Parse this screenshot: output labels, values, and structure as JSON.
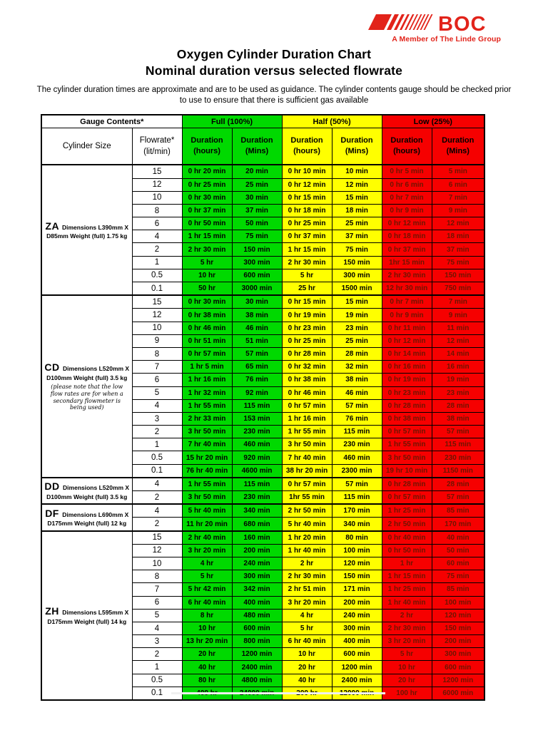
{
  "logo": {
    "brand": "BOC",
    "tagline": "A Member of The Linde Group",
    "brand_color": "#e2231a"
  },
  "title_line1": "Oxygen Cylinder Duration Chart",
  "title_line2": "Nominal duration versus selected flowrate",
  "disclaimer": "The cylinder duration times are approximate and are to be used as guidance.  The cylinder contents gauge should be checked prior to use to ensure that there is sufficient gas available",
  "table": {
    "gauge_contents_label": "Gauge Contents*",
    "bands": [
      {
        "label": "Full (100%)",
        "color": "#00d900"
      },
      {
        "label": "Half (50%)",
        "color": "#ffff00"
      },
      {
        "label": "Low (25%)",
        "color": "#f60000"
      }
    ],
    "col_headers": {
      "cylinder_size": "Cylinder Size",
      "flowrate_l1": "Flowrate*",
      "flowrate_l2": "(lit/min)",
      "duration_l1": "Duration",
      "hours_l2": "(hours)",
      "mins_l2": "(Mins)"
    },
    "sections": [
      {
        "code": "ZA",
        "details_line1": "Dimensions L390mm X",
        "details_line2": "D85mm Weight (full) 1.75 kg",
        "note": "",
        "rows": [
          {
            "flow": "15",
            "cells": [
              "0 hr 20 min",
              "20 min",
              "0 hr 10 min",
              "10 min",
              "0 hr 5 min",
              "5 min"
            ]
          },
          {
            "flow": "12",
            "cells": [
              "0 hr 25 min",
              "25 min",
              "0 hr 12 min",
              "12 min",
              "0 hr 6 min",
              "6 min"
            ]
          },
          {
            "flow": "10",
            "cells": [
              "0 hr 30 min",
              "30 min",
              "0 hr 15 min",
              "15 min",
              "0 hr 7 min",
              "7 min"
            ]
          },
          {
            "flow": "8",
            "cells": [
              "0 hr 37 min",
              "37 min",
              "0 hr 18 min",
              "18 min",
              "0 hr 9 min",
              "9 min"
            ]
          },
          {
            "flow": "6",
            "cells": [
              "0 hr 50 min",
              "50 min",
              "0 hr 25 min",
              "25 min",
              "0 hr 12 min",
              "12 min"
            ]
          },
          {
            "flow": "4",
            "cells": [
              "1 hr 15 min",
              "75 min",
              "0 hr 37 min",
              "37 min",
              "0 hr 18 min",
              "18 min"
            ]
          },
          {
            "flow": "2",
            "cells": [
              "2 hr 30 min",
              "150 min",
              "1 hr 15 min",
              "75 min",
              "0 hr 37 min",
              "37 min"
            ]
          },
          {
            "flow": "1",
            "cells": [
              "5 hr",
              "300 min",
              "2 hr 30 min",
              "150 min",
              "1hr 15 min",
              "75 min"
            ]
          },
          {
            "flow": "0.5",
            "cells": [
              "10 hr",
              "600 min",
              "5 hr",
              "300 min",
              "2 hr 30 min",
              "150 min"
            ]
          },
          {
            "flow": "0.1",
            "cells": [
              "50 hr",
              "3000 min",
              "25 hr",
              "1500 min",
              "12 hr 30 min",
              "750 min"
            ]
          }
        ]
      },
      {
        "code": "CD",
        "details_line1": "Dimensions L520mm X",
        "details_line2": "D100mm Weight (full) 3.5 kg",
        "note": "(please note that the low flow rates are for when a secondary flowmeter is being used)",
        "rows": [
          {
            "flow": "15",
            "cells": [
              "0 hr 30 min",
              "30 min",
              "0 hr 15 min",
              "15 min",
              "0 hr 7 min",
              "7 min"
            ]
          },
          {
            "flow": "12",
            "cells": [
              "0 hr 38 min",
              "38 min",
              "0 hr 19 min",
              "19 min",
              "0 hr 9 min",
              "9 min"
            ]
          },
          {
            "flow": "10",
            "cells": [
              "0 hr 46 min",
              "46 min",
              "0 hr 23 min",
              "23 min",
              "0 hr 11 min",
              "11 min"
            ]
          },
          {
            "flow": "9",
            "cells": [
              "0 hr 51 min",
              "51 min",
              "0 hr 25 min",
              "25 min",
              "0 hr 12 min",
              "12 min"
            ]
          },
          {
            "flow": "8",
            "cells": [
              "0 hr 57 min",
              "57 min",
              "0 hr 28 min",
              "28 min",
              "0 hr 14 min",
              "14 min"
            ]
          },
          {
            "flow": "7",
            "cells": [
              "1 hr 5 min",
              "65 min",
              "0 hr 32 min",
              "32 min",
              "0 hr 16 min",
              "16 min"
            ]
          },
          {
            "flow": "6",
            "cells": [
              "1 hr 16 min",
              "76 min",
              "0 hr 38 min",
              "38 min",
              "0 hr 19 min",
              "19 min"
            ]
          },
          {
            "flow": "5",
            "cells": [
              "1 hr 32 min",
              "92 min",
              "0 hr 46 min",
              "46 min",
              "0 hr 23 min",
              "23 min"
            ]
          },
          {
            "flow": "4",
            "cells": [
              "1 hr 55 min",
              "115 min",
              "0 hr 57 min",
              "57 min",
              "0 hr 28 min",
              "28 min"
            ]
          },
          {
            "flow": "3",
            "cells": [
              "2 hr 33 min",
              "153 min",
              "1 hr 16 min",
              "76 min",
              "0 hr 38 min",
              "38 min"
            ]
          },
          {
            "flow": "2",
            "cells": [
              "3 hr 50 min",
              "230 min",
              "1 hr 55 min",
              "115 min",
              "0 hr 57 min",
              "57 min"
            ]
          },
          {
            "flow": "1",
            "cells": [
              "7 hr 40 min",
              "460 min",
              "3 hr 50 min",
              "230 min",
              "1 hr 55 min",
              "115 min"
            ]
          },
          {
            "flow": "0.5",
            "cells": [
              "15 hr 20 min",
              "920 min",
              "7 hr 40 min",
              "460 min",
              "3 hr 50 min",
              "230 min"
            ]
          },
          {
            "flow": "0.1",
            "cells": [
              "76 hr 40 min",
              "4600 min",
              "38 hr 20 min",
              "2300 min",
              "19 hr 10 min",
              "1150 min"
            ]
          }
        ]
      },
      {
        "code": "DD",
        "details_line1": "Dimensions L520mm X",
        "details_line2": "D100mm Weight (full) 3.5 kg",
        "note": "",
        "rows": [
          {
            "flow": "4",
            "cells": [
              "1 hr 55 min",
              "115 min",
              "0 hr 57 min",
              "57 min",
              "0 hr 28 min",
              "28 min"
            ]
          },
          {
            "flow": "2",
            "cells": [
              "3 hr 50 min",
              "230 min",
              "1hr 55 min",
              "115 min",
              "0 hr 57 min",
              "57 min"
            ]
          }
        ]
      },
      {
        "code": "DF",
        "details_line1": "Dimensions L690mm X",
        "details_line2": "D175mm Weight (full) 12 kg",
        "note": "",
        "rows": [
          {
            "flow": "4",
            "cells": [
              "5 hr 40 min",
              "340 min",
              "2 hr 50 min",
              "170 min",
              "1 hr 25 min",
              "85 min"
            ]
          },
          {
            "flow": "2",
            "cells": [
              "11 hr 20 min",
              "680 min",
              "5 hr 40 min",
              "340 min",
              "2 hr 50 min",
              "170 min"
            ]
          }
        ]
      },
      {
        "code": "ZH",
        "details_line1": "Dimensions L595mm X",
        "details_line2": "D175mm Weight (full) 14 kg",
        "note": "",
        "rows": [
          {
            "flow": "15",
            "cells": [
              "2 hr 40 min",
              "160 min",
              "1 hr 20 min",
              "80 min",
              "0 hr 40 min",
              "40 min"
            ]
          },
          {
            "flow": "12",
            "cells": [
              "3 hr 20 min",
              "200 min",
              "1 hr 40 min",
              "100 min",
              "0 hr 50 min",
              "50 min"
            ]
          },
          {
            "flow": "10",
            "cells": [
              "4 hr",
              "240 min",
              "2 hr",
              "120 min",
              "1 hr",
              "60 min"
            ]
          },
          {
            "flow": "8",
            "cells": [
              "5 hr",
              "300 min",
              "2 hr 30 min",
              "150 min",
              "1 hr 15 min",
              "75 min"
            ]
          },
          {
            "flow": "7",
            "cells": [
              "5 hr 42 min",
              "342 min",
              "2 hr 51 min",
              "171 min",
              "1 hr 25 min",
              "85 min"
            ]
          },
          {
            "flow": "6",
            "cells": [
              "6 hr 40 min",
              "400 min",
              "3 hr 20 min",
              "200 min",
              "1 hr 40 min",
              "100 min"
            ]
          },
          {
            "flow": "5",
            "cells": [
              "8 hr",
              "480 min",
              "4 hr",
              "240 min",
              "2 hr",
              "120 min"
            ]
          },
          {
            "flow": "4",
            "cells": [
              "10 hr",
              "600 min",
              "5 hr",
              "300 min",
              "2 hr 30 min",
              "150 min"
            ]
          },
          {
            "flow": "3",
            "cells": [
              "13 hr 20 min",
              "800 min",
              "6 hr 40 min",
              "400 min",
              "3 hr 20 min",
              "200 min"
            ]
          },
          {
            "flow": "2",
            "cells": [
              "20 hr",
              "1200 min",
              "10 hr",
              "600 min",
              "5 hr",
              "300 min"
            ]
          },
          {
            "flow": "1",
            "cells": [
              "40 hr",
              "2400 min",
              "20 hr",
              "1200 min",
              "10 hr",
              "600 min"
            ]
          },
          {
            "flow": "0.5",
            "cells": [
              "80 hr",
              "4800 min",
              "40 hr",
              "2400 min",
              "20 hr",
              "1200 min"
            ]
          },
          {
            "flow": "0.1",
            "cells": [
              "400 hr",
              "24000 min",
              "200 hr",
              "12000 min",
              "100 hr",
              "6000 min"
            ]
          }
        ]
      }
    ]
  }
}
